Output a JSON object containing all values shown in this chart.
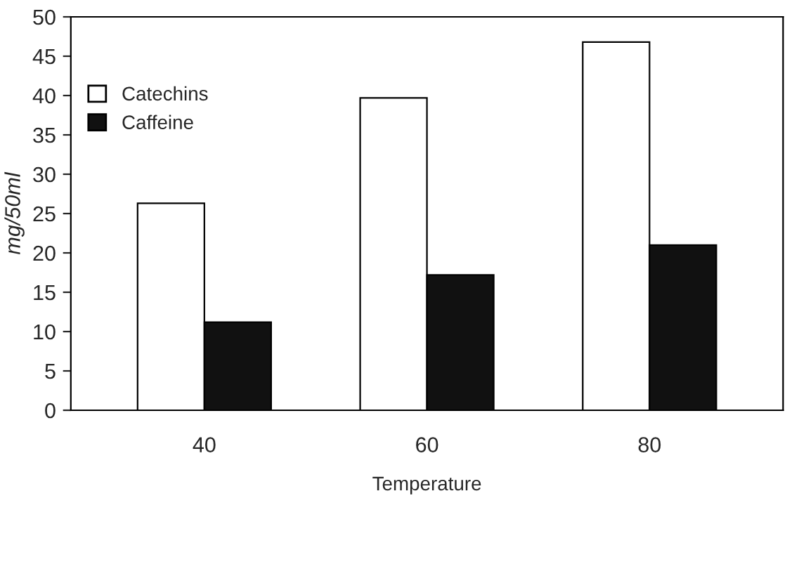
{
  "chart_data": {
    "type": "bar",
    "xlabel": "Temperature",
    "ylabel": "mg/50ml",
    "categories": [
      "40",
      "60",
      "80"
    ],
    "series": [
      {
        "name": "Catechins",
        "color": "#ffffff",
        "values": [
          26.3,
          39.7,
          46.8
        ]
      },
      {
        "name": "Caffeine",
        "color": "#111111",
        "values": [
          11.2,
          17.2,
          21.0
        ]
      }
    ],
    "ylim": [
      0,
      50
    ],
    "yticks": [
      0,
      5,
      10,
      15,
      20,
      25,
      30,
      35,
      40,
      45,
      50
    ],
    "grid": false,
    "legend": "top left"
  }
}
